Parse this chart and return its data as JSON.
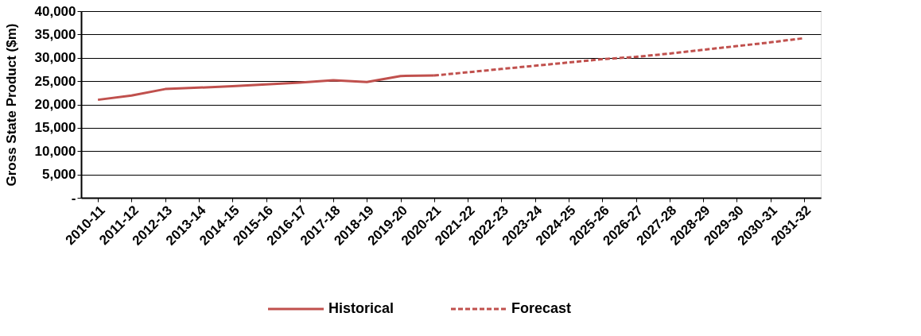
{
  "chart_data": {
    "type": "line",
    "ylabel": "Gross State Product ($m)",
    "categories": [
      "2010-11",
      "2011-12",
      "2012-13",
      "2013-14",
      "2014-15",
      "2015-16",
      "2016-17",
      "2017-18",
      "2018-19",
      "2019-20",
      "2020-21",
      "2021-22",
      "2022-23",
      "2023-24",
      "2024-25",
      "2025-26",
      "2026-27",
      "2027-28",
      "2028-29",
      "2029-30",
      "2030-31",
      "2031-32"
    ],
    "series": [
      {
        "name": "Historical",
        "color": "#c0504d",
        "line_style": "solid",
        "values": [
          21000,
          21900,
          23300,
          23600,
          23900,
          24300,
          24700,
          25200,
          24800,
          26100,
          26200,
          null,
          null,
          null,
          null,
          null,
          null,
          null,
          null,
          null,
          null,
          null
        ]
      },
      {
        "name": "Forecast",
        "color": "#c0504d",
        "line_style": "dashed",
        "values": [
          null,
          null,
          null,
          null,
          null,
          null,
          null,
          null,
          null,
          null,
          26200,
          26900,
          27600,
          28300,
          29000,
          29700,
          30200,
          30900,
          31700,
          32500,
          33300,
          34200
        ]
      }
    ],
    "ylim": [
      0,
      40000
    ],
    "yticks": [
      {
        "value": 0,
        "label": "-"
      },
      {
        "value": 5000,
        "label": "5,000"
      },
      {
        "value": 10000,
        "label": "10,000"
      },
      {
        "value": 15000,
        "label": "15,000"
      },
      {
        "value": 20000,
        "label": "20,000"
      },
      {
        "value": 25000,
        "label": "25,000"
      },
      {
        "value": 30000,
        "label": "30,000"
      },
      {
        "value": 35000,
        "label": "35,000"
      },
      {
        "value": 40000,
        "label": "40,000"
      }
    ],
    "grid": "y",
    "legend": "bottom",
    "marker": "none"
  }
}
